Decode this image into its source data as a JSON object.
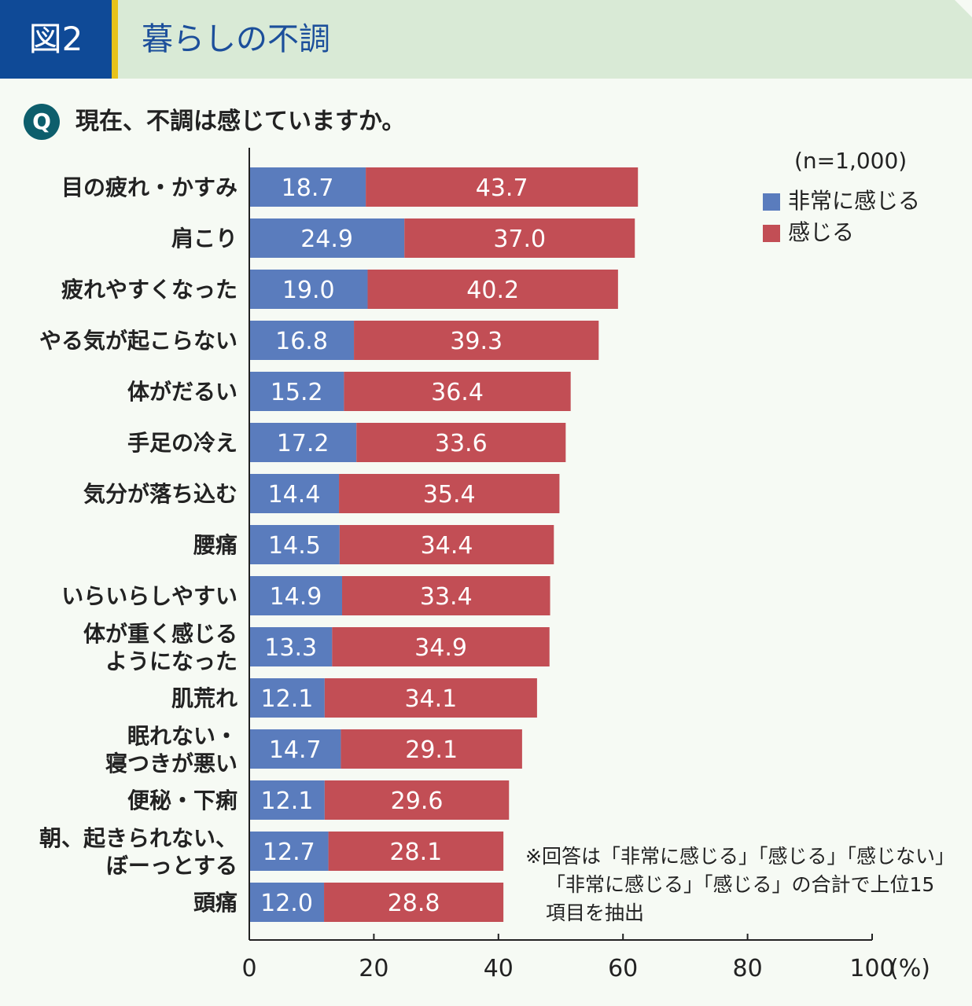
{
  "header": {
    "figure_label": "図2",
    "title": "暮らしの不調"
  },
  "question": {
    "badge": "Q",
    "text": "現在、不調は感じていますか。"
  },
  "sample": "(n=1,000)",
  "note": {
    "line1": "※回答は「非常に感じる」「感じる」「感じない」",
    "line2": "「非常に感じる」「感じる」の合計で上位15",
    "line3": "項目を抽出"
  },
  "colors": {
    "very": "#5a7cbd",
    "feel": "#c24e55"
  },
  "chart_data": {
    "type": "bar",
    "orientation": "horizontal",
    "stacked": true,
    "categories": [
      "目の疲れ・かすみ",
      "肩こり",
      "疲れやすくなった",
      "やる気が起こらない",
      "体がだるい",
      "手足の冷え",
      "気分が落ち込む",
      "腰痛",
      "いらいらしやすい",
      "体が重く感じる\nようになった",
      "肌荒れ",
      "眠れない・\n寝つきが悪い",
      "便秘・下痢",
      "朝、起きられない、\nぼーっとする",
      "頭痛"
    ],
    "series": [
      {
        "name": "非常に感じる",
        "values": [
          18.7,
          24.9,
          19.0,
          16.8,
          15.2,
          17.2,
          14.4,
          14.5,
          14.9,
          13.3,
          12.1,
          14.7,
          12.1,
          12.7,
          12.0
        ]
      },
      {
        "name": "感じる",
        "values": [
          43.7,
          37.0,
          40.2,
          39.3,
          36.4,
          33.6,
          35.4,
          34.4,
          33.4,
          34.9,
          34.1,
          29.1,
          29.6,
          28.1,
          28.8
        ]
      }
    ],
    "xlim": [
      0,
      100
    ],
    "xticks": [
      "0",
      "20",
      "40",
      "60",
      "80",
      "100"
    ],
    "xunit": "(%)",
    "legend_position": "top-right",
    "grid": false
  }
}
